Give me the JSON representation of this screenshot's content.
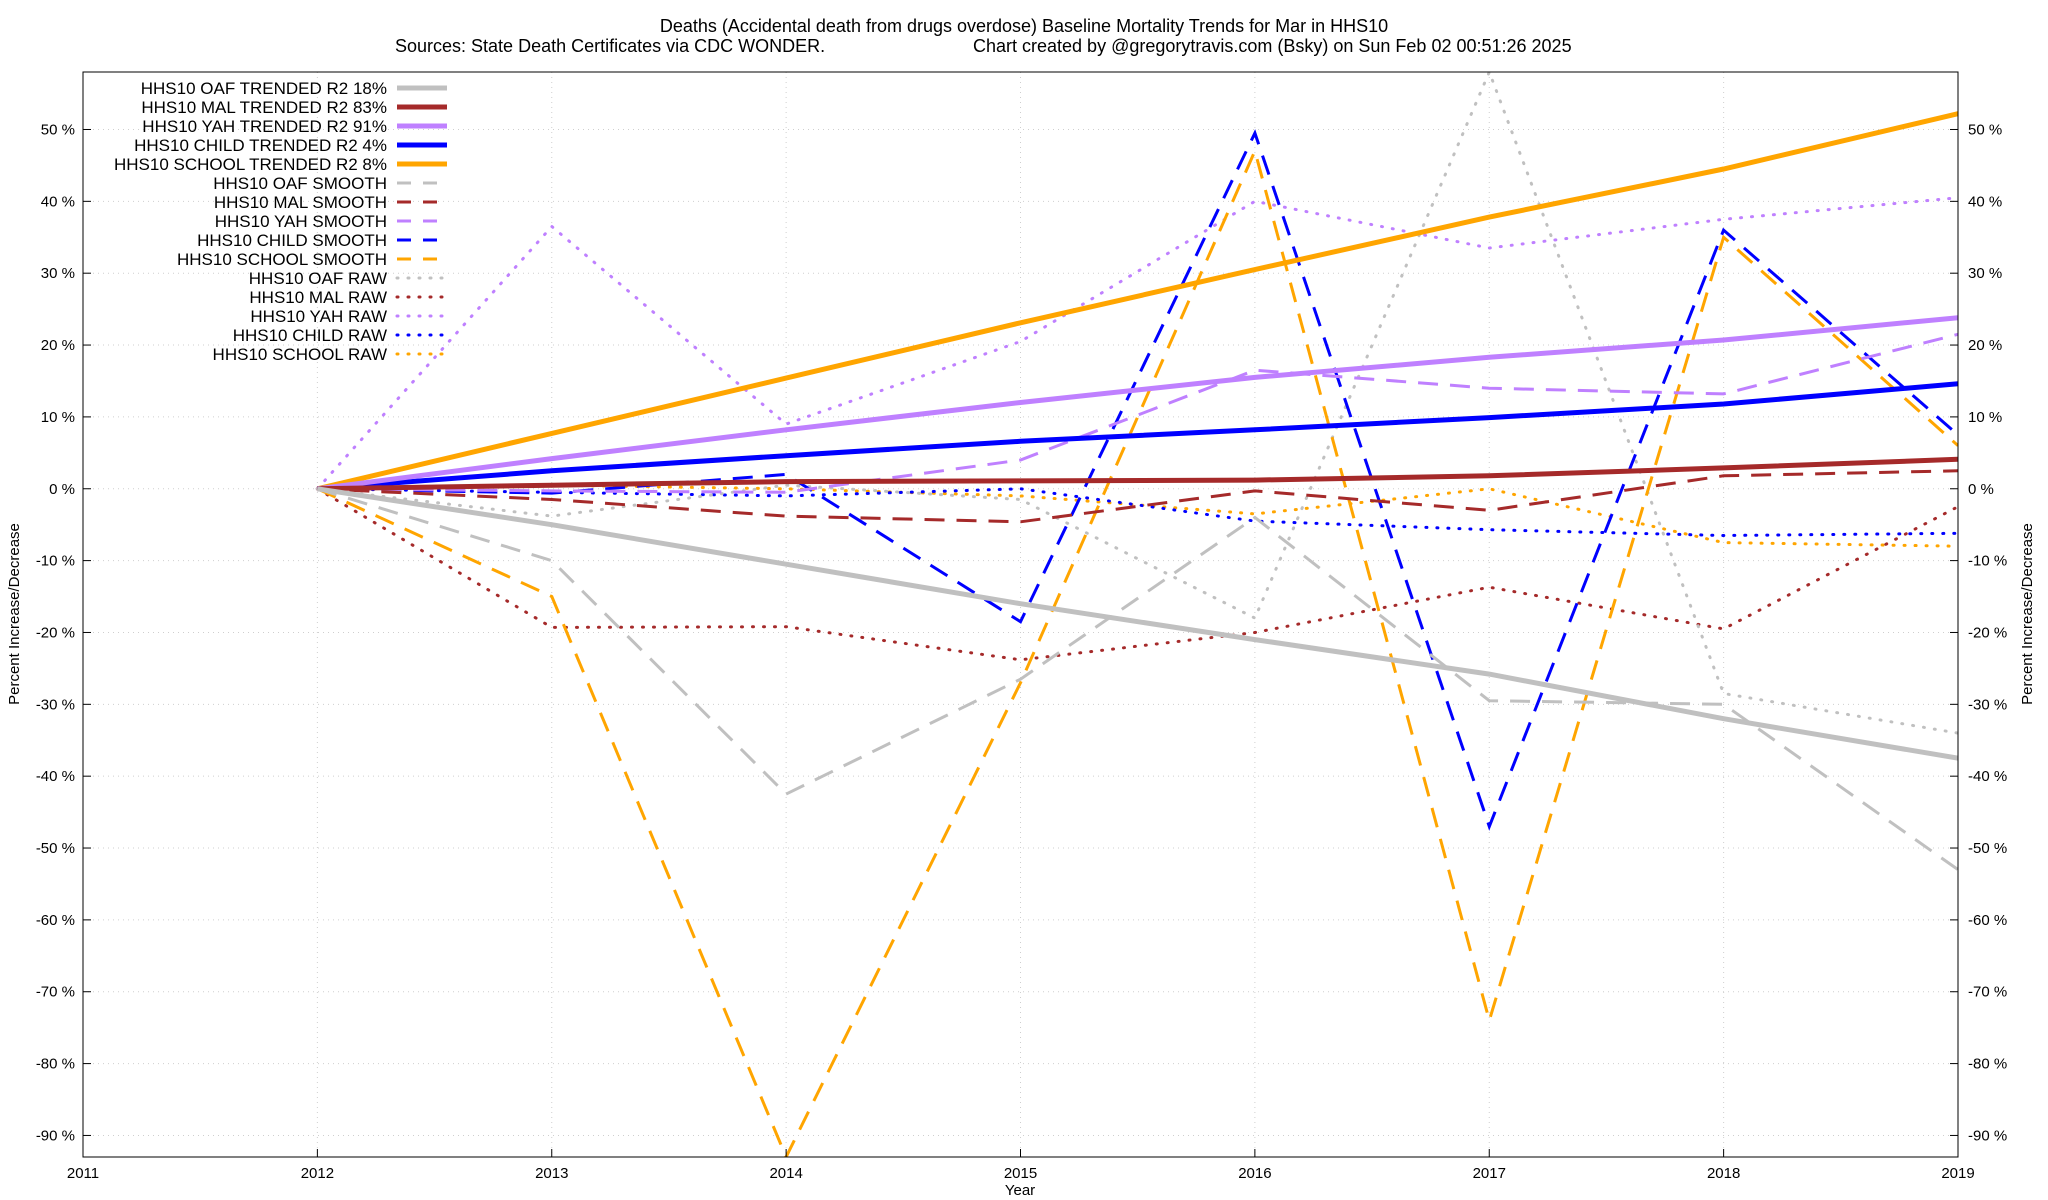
{
  "chart_data": {
    "type": "line",
    "title": "Deaths (Accidental death from drugs overdose)  Baseline Mortality Trends for Mar in HHS10",
    "subtitle_left": "Sources: State Death Certificates via CDC WONDER.",
    "subtitle_right": "Chart created by @gregorytravis.com (Bsky) on Sun Feb 02 00:51:26 2025",
    "xlabel": "Year",
    "ylabel": "Percent Increase/Decrease",
    "xlim": [
      2011,
      2019
    ],
    "ylim": [
      -93,
      58
    ],
    "x_ticks": [
      2011,
      2012,
      2013,
      2014,
      2015,
      2016,
      2017,
      2018,
      2019
    ],
    "y_ticks": [
      50,
      40,
      30,
      20,
      10,
      0,
      -10,
      -20,
      -30,
      -40,
      -50,
      -60,
      -70,
      -80,
      -90
    ],
    "y_tick_suffix": " %",
    "grid": true,
    "legend_position": "top-left",
    "series": [
      {
        "name": "HHS10 OAF TRENDED R2  18%",
        "style": "solid",
        "color": "#c0c0c0",
        "x": [
          2012,
          2013,
          2014,
          2015,
          2016,
          2017,
          2018,
          2019
        ],
        "y": [
          0,
          -5,
          -10.5,
          -16,
          -21,
          -25.8,
          -32,
          -37.5
        ]
      },
      {
        "name": "HHS10 MAL TRENDED R2  83%",
        "style": "solid",
        "color": "#a52a2a",
        "x": [
          2012,
          2013,
          2014,
          2015,
          2016,
          2017,
          2018,
          2019
        ],
        "y": [
          0,
          0.5,
          1,
          1.1,
          1.2,
          1.8,
          2.9,
          4.1
        ]
      },
      {
        "name": "HHS10 YAH TRENDED R2  91%",
        "style": "solid",
        "color": "#bf80ff",
        "x": [
          2012,
          2013,
          2014,
          2015,
          2016,
          2017,
          2018,
          2019
        ],
        "y": [
          0,
          4.2,
          8.2,
          12,
          15.5,
          18.3,
          20.7,
          23.8
        ]
      },
      {
        "name": "HHS10 CHILD TRENDED R2  4%",
        "style": "solid",
        "color": "#0000ff",
        "x": [
          2012,
          2013,
          2014,
          2015,
          2016,
          2017,
          2018,
          2019
        ],
        "y": [
          0,
          2.5,
          4.6,
          6.6,
          8.2,
          9.9,
          11.8,
          14.6
        ]
      },
      {
        "name": "HHS10 SCHOOL TRENDED R2  8%",
        "style": "solid",
        "color": "#ffa500",
        "x": [
          2012,
          2013,
          2014,
          2015,
          2016,
          2017,
          2018,
          2019
        ],
        "y": [
          0,
          7.7,
          15.4,
          23.1,
          30.5,
          37.8,
          44.5,
          52.2
        ]
      },
      {
        "name": "HHS10 OAF SMOOTH",
        "style": "dash",
        "color": "#c0c0c0",
        "x": [
          2012,
          2013,
          2014,
          2015,
          2016,
          2017,
          2018,
          2019
        ],
        "y": [
          0,
          -10,
          -42.5,
          -26.5,
          -4,
          -29.5,
          -30,
          -53
        ]
      },
      {
        "name": "HHS10 MAL SMOOTH",
        "style": "dash",
        "color": "#a52a2a",
        "x": [
          2012,
          2013,
          2014,
          2015,
          2016,
          2017,
          2018,
          2019
        ],
        "y": [
          0,
          -1.5,
          -3.8,
          -4.6,
          -0.3,
          -3,
          1.8,
          2.5
        ]
      },
      {
        "name": "HHS10 YAH SMOOTH",
        "style": "dash",
        "color": "#bf80ff",
        "x": [
          2012,
          2013,
          2014,
          2015,
          2016,
          2017,
          2018,
          2019
        ],
        "y": [
          0,
          -0.3,
          -0.5,
          4,
          16.5,
          14,
          13.2,
          21.5
        ]
      },
      {
        "name": "HHS10 CHILD SMOOTH",
        "style": "dash",
        "color": "#0000ff",
        "x": [
          2012,
          2013,
          2014,
          2015,
          2016,
          2017,
          2018,
          2019
        ],
        "y": [
          0,
          -0.6,
          2,
          -18.5,
          49.5,
          -47,
          36,
          7.5
        ]
      },
      {
        "name": "HHS10 SCHOOL SMOOTH",
        "style": "dash",
        "color": "#ffa500",
        "x": [
          2012,
          2013,
          2014,
          2015,
          2016,
          2017,
          2018,
          2019
        ],
        "y": [
          0,
          -15,
          -93,
          -27,
          47,
          -74,
          35,
          6
        ]
      },
      {
        "name": "HHS10 OAF RAW",
        "style": "dot",
        "color": "#c0c0c0",
        "x": [
          2012,
          2013,
          2014,
          2015,
          2016,
          2017,
          2018,
          2019
        ],
        "y": [
          0,
          -3.8,
          0.5,
          -1.5,
          -18,
          58,
          -28.5,
          -34
        ]
      },
      {
        "name": "HHS10 MAL RAW",
        "style": "dot",
        "color": "#a52a2a",
        "x": [
          2012,
          2013,
          2014,
          2015,
          2016,
          2017,
          2018,
          2019
        ],
        "y": [
          0,
          -19.3,
          -19.2,
          -23.8,
          -20,
          -13.7,
          -19.5,
          -2.5
        ]
      },
      {
        "name": "HHS10 YAH RAW",
        "style": "dot",
        "color": "#bf80ff",
        "x": [
          2012,
          2013,
          2014,
          2015,
          2016,
          2017,
          2018,
          2019
        ],
        "y": [
          0,
          36.5,
          9,
          20.5,
          40,
          33.5,
          37.5,
          40.5
        ]
      },
      {
        "name": "HHS10 CHILD RAW",
        "style": "dot",
        "color": "#0000ff",
        "x": [
          2012,
          2013,
          2014,
          2015,
          2016,
          2017,
          2018,
          2019
        ],
        "y": [
          0,
          -0.5,
          -1,
          0,
          -4.5,
          -5.7,
          -6.5,
          -6.2
        ]
      },
      {
        "name": "HHS10 SCHOOL RAW",
        "style": "dot",
        "color": "#ffa500",
        "x": [
          2012,
          2013,
          2014,
          2015,
          2016,
          2017,
          2018,
          2019
        ],
        "y": [
          0,
          0.5,
          0,
          -1,
          -3.5,
          0,
          -7.5,
          -8
        ]
      }
    ]
  }
}
